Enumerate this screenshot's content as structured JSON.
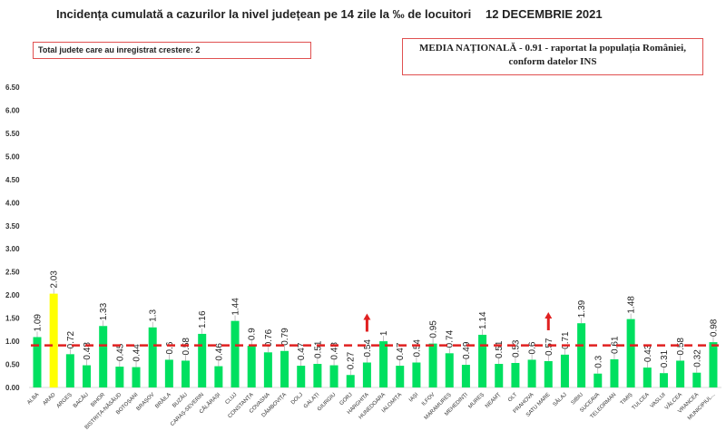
{
  "header": {
    "title": "Incidența cumulată a cazurilor la nivel județean pe 14 zile la ‰ de locuitori",
    "date": "12 DECEMBRIE 2021"
  },
  "info_boxes": {
    "increase_count": "Total judete care au inregistrat crestere: 2",
    "national_average_line1": "MEDIA NAȚIONALĂ - 0.91 -  raportat la populația României,",
    "national_average_line2": "conform datelor INS"
  },
  "colors": {
    "bar": "#00e060",
    "highlight_bar": "#ffff00",
    "average_line": "#e02020",
    "increase_arrow": "#e02020"
  },
  "chart_data": {
    "type": "bar",
    "title": "Incidența cumulată a cazurilor la nivel județean pe 14 zile la ‰ de locuitori",
    "ylim": [
      0,
      6.5
    ],
    "yticks": [
      "0.00",
      "0.50",
      "1.00",
      "1.50",
      "2.00",
      "2.50",
      "3.00",
      "3.50",
      "4.00",
      "4.50",
      "5.00",
      "5.50",
      "6.00",
      "6.50"
    ],
    "grid": false,
    "categories": [
      "ALBA",
      "ARAD",
      "ARGEȘ",
      "BACĂU",
      "BIHOR",
      "BISTRIȚA-NĂSĂUD",
      "BOTOȘANI",
      "BRAȘOV",
      "BRĂILA",
      "BUZĂU",
      "CARAȘ-SEVERIN",
      "CĂLĂRAȘI",
      "CLUJ",
      "CONSTANȚA",
      "COVASNA",
      "DÂMBOVIȚA",
      "DOLJ",
      "GALAȚI",
      "GIURGIU",
      "GORJ",
      "HARGHITA",
      "HUNEDOARA",
      "IALOMIȚA",
      "IAȘI",
      "ILFOV",
      "MARAMUREȘ",
      "MEHEDINȚI",
      "MUREȘ",
      "NEAMȚ",
      "OLT",
      "PRAHOVA",
      "SATU MARE",
      "SĂLAJ",
      "SIBIU",
      "SUCEAVA",
      "TELEORMAN",
      "TIMIȘ",
      "TULCEA",
      "VASLUI",
      "VÂLCEA",
      "VRANCEA",
      "MUNICIPIUL..."
    ],
    "values": [
      1.09,
      2.03,
      0.72,
      0.48,
      1.33,
      0.45,
      0.44,
      1.3,
      0.6,
      0.58,
      1.16,
      0.46,
      1.44,
      0.9,
      0.76,
      0.79,
      0.47,
      0.51,
      0.48,
      0.27,
      0.54,
      1,
      0.47,
      0.54,
      0.95,
      0.74,
      0.49,
      1.14,
      0.51,
      0.53,
      0.6,
      0.57,
      0.71,
      1.39,
      0.3,
      0.61,
      1.48,
      0.43,
      0.31,
      0.58,
      0.32,
      0.98
    ],
    "highlighted": [
      "ARAD"
    ],
    "increase_markers": [
      "HARGHITA",
      "SATU MARE"
    ],
    "reference_line": {
      "value": 0.91,
      "style": "dashed"
    }
  }
}
